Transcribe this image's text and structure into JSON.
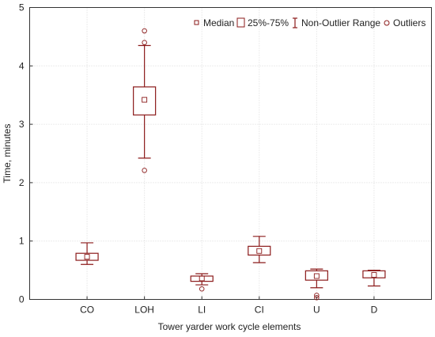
{
  "chart_data": {
    "type": "box",
    "xlabel": "Tower yarder work cycle elements",
    "ylabel": "Time, minutes",
    "ylim": [
      0,
      5
    ],
    "yticks": [
      0,
      1,
      2,
      3,
      4,
      5
    ],
    "grid": true,
    "legend_position": "top-right",
    "color": "#8b1a1a",
    "legend": {
      "median": "Median",
      "box": "25%-75%",
      "range": "Non-Outlier Range",
      "outliers": "Outliers"
    },
    "categories": [
      "CO",
      "LOH",
      "LI",
      "CI",
      "U",
      "D"
    ],
    "boxes": [
      {
        "category": "CO",
        "min": 0.6,
        "q1": 0.67,
        "median": 0.73,
        "q3": 0.79,
        "max": 0.97,
        "outliers": []
      },
      {
        "category": "LOH",
        "min": 2.42,
        "q1": 3.16,
        "median": 3.42,
        "q3": 3.64,
        "max": 4.35,
        "outliers": [
          4.6,
          4.4,
          2.21
        ]
      },
      {
        "category": "LI",
        "min": 0.25,
        "q1": 0.31,
        "median": 0.36,
        "q3": 0.4,
        "max": 0.44,
        "outliers": [
          0.18
        ]
      },
      {
        "category": "CI",
        "min": 0.63,
        "q1": 0.76,
        "median": 0.83,
        "q3": 0.91,
        "max": 1.08,
        "outliers": []
      },
      {
        "category": "U",
        "min": 0.2,
        "q1": 0.33,
        "median": 0.4,
        "q3": 0.49,
        "max": 0.52,
        "outliers": [
          0.07,
          0.03
        ]
      },
      {
        "category": "D",
        "min": 0.23,
        "q1": 0.37,
        "median": 0.42,
        "q3": 0.49,
        "max": 0.5,
        "outliers": []
      }
    ]
  }
}
